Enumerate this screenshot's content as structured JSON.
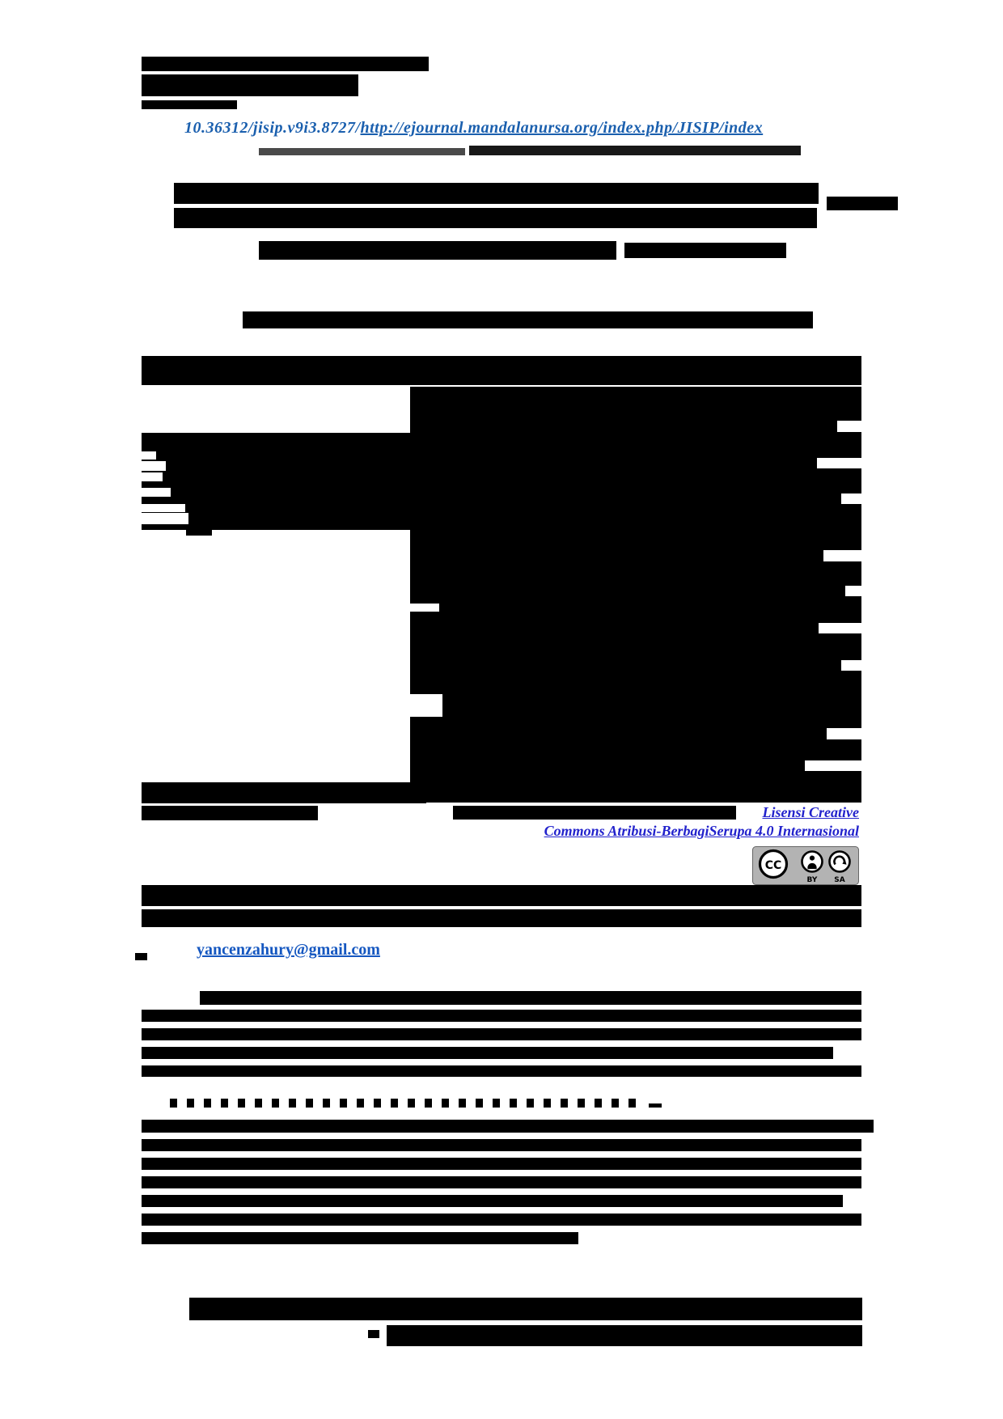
{
  "doi": {
    "prefix": "10.36312/jisip.v9i3.8727/",
    "url": "http://ejournal.mandalanursa.org/index.php/JISIP/index",
    "color": "#1a5fae"
  },
  "license": {
    "link_line1": "Lisensi Creative",
    "link_line2": "Commons Atribusi-BerbagiSerupa 4.0 Internasional",
    "color": "#2222cc",
    "badge": {
      "cc": "CC",
      "by": "BY",
      "sa": "SA"
    }
  },
  "correspondence": {
    "email": "yancenzahury@gmail.com",
    "color": "#1557c0"
  }
}
